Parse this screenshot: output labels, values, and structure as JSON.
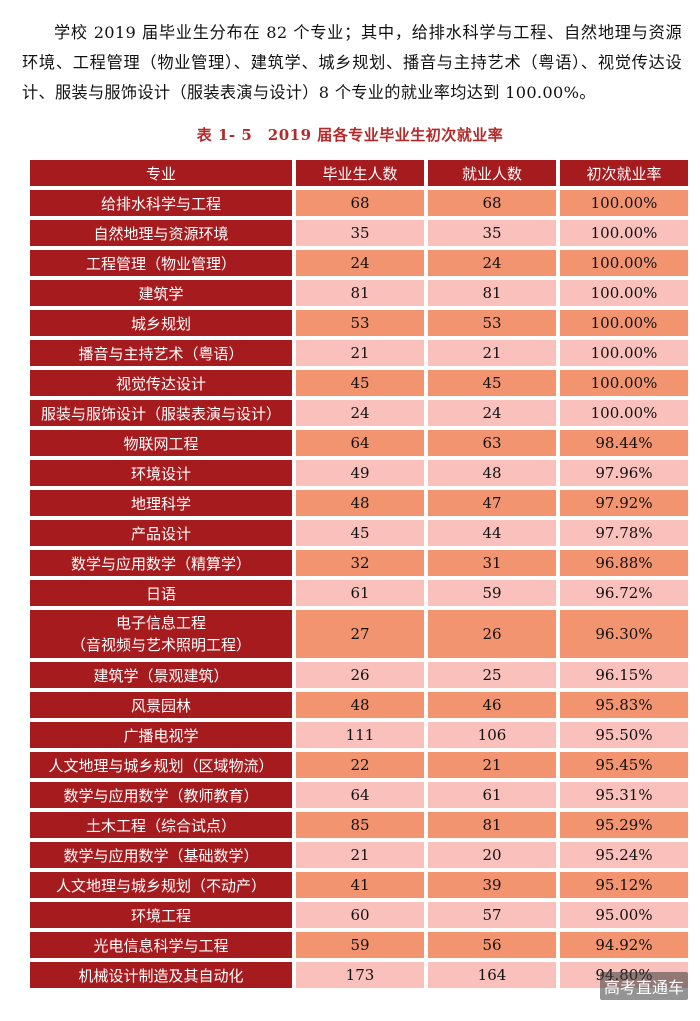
{
  "intro": "学校 2019 届毕业生分布在 82 个专业；其中，给排水科学与工程、自然地理与资源环境、工程管理（物业管理）、建筑学、城乡规划、播音与主持艺术（粤语）、视觉传达设计、服装与服饰设计（服装表演与设计）8 个专业的就业率均达到 100.00%。",
  "table": {
    "caption": "表 1- 5　2019 届各专业毕业生初次就业率",
    "headers": [
      "专业",
      "毕业生人数",
      "就业人数",
      "初次就业率"
    ],
    "rows": [
      {
        "major": "给排水科学与工程",
        "graduates": "68",
        "employed": "68",
        "rate": "100.00%"
      },
      {
        "major": "自然地理与资源环境",
        "graduates": "35",
        "employed": "35",
        "rate": "100.00%"
      },
      {
        "major": "工程管理（物业管理）",
        "graduates": "24",
        "employed": "24",
        "rate": "100.00%"
      },
      {
        "major": "建筑学",
        "graduates": "81",
        "employed": "81",
        "rate": "100.00%"
      },
      {
        "major": "城乡规划",
        "graduates": "53",
        "employed": "53",
        "rate": "100.00%"
      },
      {
        "major": "播音与主持艺术（粤语）",
        "graduates": "21",
        "employed": "21",
        "rate": "100.00%"
      },
      {
        "major": "视觉传达设计",
        "graduates": "45",
        "employed": "45",
        "rate": "100.00%"
      },
      {
        "major": "服装与服饰设计（服装表演与设计）",
        "graduates": "24",
        "employed": "24",
        "rate": "100.00%"
      },
      {
        "major": "物联网工程",
        "graduates": "64",
        "employed": "63",
        "rate": "98.44%"
      },
      {
        "major": "环境设计",
        "graduates": "49",
        "employed": "48",
        "rate": "97.96%"
      },
      {
        "major": "地理科学",
        "graduates": "48",
        "employed": "47",
        "rate": "97.92%"
      },
      {
        "major": "产品设计",
        "graduates": "45",
        "employed": "44",
        "rate": "97.78%"
      },
      {
        "major": "数学与应用数学（精算学）",
        "graduates": "32",
        "employed": "31",
        "rate": "96.88%"
      },
      {
        "major": "日语",
        "graduates": "61",
        "employed": "59",
        "rate": "96.72%"
      },
      {
        "major": "电子信息工程",
        "major2": "（音视频与艺术照明工程）",
        "graduates": "27",
        "employed": "26",
        "rate": "96.30%"
      },
      {
        "major": "建筑学（景观建筑）",
        "graduates": "26",
        "employed": "25",
        "rate": "96.15%"
      },
      {
        "major": "风景园林",
        "graduates": "48",
        "employed": "46",
        "rate": "95.83%"
      },
      {
        "major": "广播电视学",
        "graduates": "111",
        "employed": "106",
        "rate": "95.50%"
      },
      {
        "major": "人文地理与城乡规划（区域物流）",
        "graduates": "22",
        "employed": "21",
        "rate": "95.45%"
      },
      {
        "major": "数学与应用数学（教师教育）",
        "graduates": "64",
        "employed": "61",
        "rate": "95.31%"
      },
      {
        "major": "土木工程（综合试点）",
        "graduates": "85",
        "employed": "81",
        "rate": "95.29%"
      },
      {
        "major": "数学与应用数学（基础数学）",
        "graduates": "21",
        "employed": "20",
        "rate": "95.24%"
      },
      {
        "major": "人文地理与城乡规划（不动产）",
        "graduates": "41",
        "employed": "39",
        "rate": "95.12%"
      },
      {
        "major": "环境工程",
        "graduates": "60",
        "employed": "57",
        "rate": "95.00%"
      },
      {
        "major": "光电信息科学与工程",
        "graduates": "59",
        "employed": "56",
        "rate": "94.92%"
      },
      {
        "major": "机械设计制造及其自动化",
        "graduates": "173",
        "employed": "164",
        "rate": "94.80%"
      }
    ]
  },
  "watermark": "高考直通车",
  "colors": {
    "header_bg": "#a61b1e",
    "value_dark": "#f29470",
    "value_light": "#fac0bb",
    "caption": "#b42a2a"
  }
}
